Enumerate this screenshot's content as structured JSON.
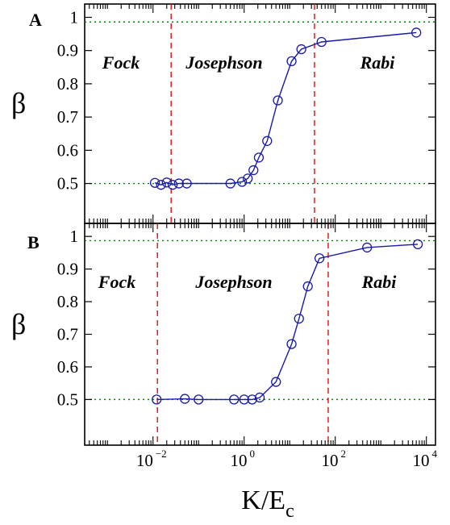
{
  "chart_data": {
    "type": "line",
    "xlabel_main": "K/E",
    "xlabel_sub": "c",
    "xscale": "log",
    "xlim_log10": [
      -3.5,
      4.2
    ],
    "x_ticks": [
      {
        "base": "10",
        "exp": "−2",
        "log10": -2
      },
      {
        "base": "10",
        "exp": "0",
        "log10": 0
      },
      {
        "base": "10",
        "exp": "2",
        "log10": 2
      },
      {
        "base": "10",
        "exp": "4",
        "log10": 4
      }
    ],
    "colors": {
      "series": "#1a1aaa",
      "regime_boundary": "#dd1111",
      "reference": "#008800"
    },
    "panels": [
      {
        "letter": "A",
        "ylabel": "β",
        "ylim": [
          0.38,
          1.04
        ],
        "y_ticks": [
          "0.5",
          "0.6",
          "0.7",
          "0.8",
          "0.9",
          "1"
        ],
        "reference_lines_y": [
          0.5,
          0.986
        ],
        "regime_boundaries_x": [
          0.025,
          35
        ],
        "regions": [
          "Fock",
          "Josephson",
          "Rabi"
        ],
        "x": [
          0.011,
          0.015,
          0.02,
          0.027,
          0.037,
          0.055,
          0.5,
          0.9,
          1.2,
          1.6,
          2.1,
          3.2,
          5.5,
          11,
          18,
          50,
          6000
        ],
        "y": [
          0.502,
          0.496,
          0.503,
          0.496,
          0.5,
          0.5,
          0.5,
          0.505,
          0.515,
          0.54,
          0.578,
          0.628,
          0.75,
          0.868,
          0.904,
          0.926,
          0.954
        ]
      },
      {
        "letter": "B",
        "ylabel": "β",
        "ylim": [
          0.36,
          1.04
        ],
        "y_ticks": [
          "0.5",
          "0.6",
          "0.7",
          "0.8",
          "0.9",
          "1"
        ],
        "reference_lines_y": [
          0.5,
          0.987
        ],
        "regime_boundaries_x": [
          0.0125,
          70
        ],
        "regions": [
          "Fock",
          "Josephson",
          "Rabi"
        ],
        "x": [
          0.012,
          0.05,
          0.1,
          0.6,
          1.0,
          1.5,
          2.2,
          5,
          11,
          16,
          25,
          45,
          500,
          6500
        ],
        "y": [
          0.5,
          0.502,
          0.5,
          0.5,
          0.5,
          0.5,
          0.506,
          0.554,
          0.67,
          0.748,
          0.847,
          0.933,
          0.966,
          0.976
        ]
      }
    ]
  }
}
